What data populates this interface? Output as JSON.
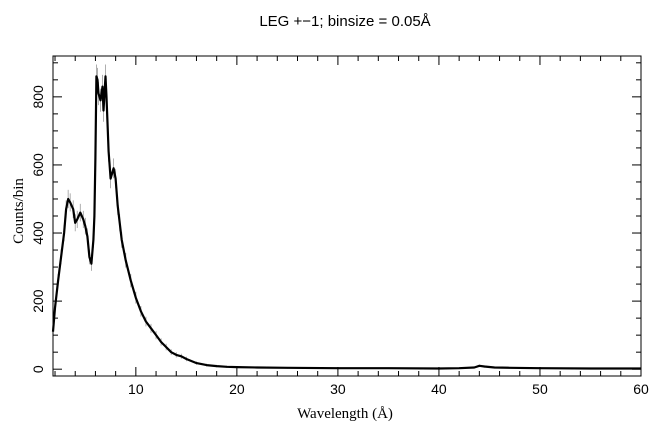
{
  "chart_data": {
    "type": "line",
    "title": "LEG +−1; binsize = 0.05Å",
    "xlabel": "Wavelength (Å)",
    "ylabel": "Counts/bin",
    "xlim": [
      1.8,
      60
    ],
    "ylim": [
      -20,
      920
    ],
    "xticks": [
      10,
      20,
      30,
      40,
      50,
      60
    ],
    "yticks": [
      0,
      200,
      400,
      600,
      800
    ],
    "grid": false,
    "series": [
      {
        "color": "#000000",
        "x": [
          1.8,
          2.0,
          2.3,
          2.6,
          2.9,
          3.1,
          3.3,
          3.5,
          3.8,
          4.0,
          4.2,
          4.5,
          4.8,
          5.0,
          5.2,
          5.4,
          5.6,
          5.8,
          5.9,
          6.0,
          6.1,
          6.2,
          6.3,
          6.5,
          6.7,
          6.8,
          7.0,
          7.1,
          7.3,
          7.5,
          7.8,
          8.0,
          8.2,
          8.4,
          8.6,
          9.0,
          9.5,
          10.0,
          10.5,
          11.0,
          11.5,
          12.0,
          12.5,
          13.0,
          13.5,
          14.0,
          14.5,
          15.0,
          16.0,
          17.0,
          18.0,
          19.0,
          20.0,
          22.0,
          25.0,
          30.0,
          35.0,
          40.0,
          42.0,
          43.5,
          44.0,
          44.5,
          45.5,
          47.0,
          50.0,
          55.0,
          60.0
        ],
        "y": [
          110,
          180,
          260,
          330,
          400,
          470,
          500,
          490,
          470,
          430,
          440,
          460,
          440,
          420,
          390,
          330,
          310,
          380,
          450,
          620,
          860,
          850,
          810,
          790,
          830,
          760,
          860,
          800,
          640,
          560,
          590,
          560,
          480,
          430,
          380,
          320,
          260,
          210,
          170,
          140,
          120,
          100,
          80,
          65,
          50,
          42,
          38,
          30,
          18,
          12,
          9,
          7,
          6,
          5,
          4,
          3,
          3,
          2,
          3,
          5,
          10,
          8,
          5,
          4,
          3,
          2,
          2
        ]
      }
    ]
  }
}
